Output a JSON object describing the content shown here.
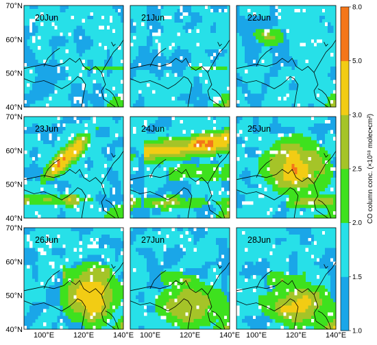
{
  "panels": [
    {
      "date": "20Jun",
      "event": "none"
    },
    {
      "date": "21Jun",
      "event": "none"
    },
    {
      "date": "22Jun",
      "event": "north-blob"
    },
    {
      "date": "23Jun",
      "event": "diagonal-plume"
    },
    {
      "date": "24Jun",
      "event": "east-band"
    },
    {
      "date": "25Jun",
      "event": "wide-plume"
    },
    {
      "date": "26Jun",
      "event": "south-broad"
    },
    {
      "date": "27Jun",
      "event": "south-east"
    },
    {
      "date": "28Jun",
      "event": "south-east"
    }
  ],
  "axes": {
    "lat_ticks": [
      {
        "value": 40,
        "label": "40°N"
      },
      {
        "value": 50,
        "label": "50°N"
      },
      {
        "value": 60,
        "label": "60°N"
      },
      {
        "value": 70,
        "label": "70°N"
      }
    ],
    "lon_ticks": [
      {
        "value": 100,
        "label": "100°E"
      },
      {
        "value": 120,
        "label": "120°E"
      },
      {
        "value": 140,
        "label": "140°E"
      }
    ],
    "lon_range": [
      90,
      140
    ],
    "lat_range": [
      40,
      70
    ]
  },
  "colorbar": {
    "title": "CO column conc. (×10¹⁸ molec•cm²)",
    "ticks": [
      "1.0",
      "1.5",
      "2.0",
      "2.5",
      "3.0",
      "5.0",
      "8.0"
    ],
    "colors": [
      "#1aa6e8",
      "#27e0e8",
      "#3ee11e",
      "#a5c428",
      "#f2cc14",
      "#f4761a"
    ]
  }
}
